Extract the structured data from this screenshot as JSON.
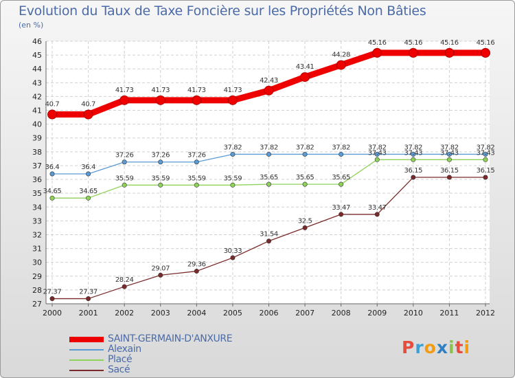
{
  "title": "Evolution du Taux de Taxe Foncière sur les Propriétés Non Bâties",
  "unit_label": "(en %)",
  "logo": {
    "letters": [
      "P",
      "r",
      "o",
      "x",
      "i",
      "t",
      "i"
    ],
    "colors": [
      "#e84c3d",
      "#3aa0d6",
      "#f39c12",
      "#2f7fc1",
      "#8bc34a",
      "#e84c3d",
      "#f39c12"
    ]
  },
  "chart_data": {
    "type": "line",
    "title": "Evolution du Taux de Taxe Foncière sur les Propriétés Non Bâties",
    "ylabel": "(en %)",
    "xlabel": "",
    "ylim": [
      27,
      46
    ],
    "yticks": [
      27,
      28,
      29,
      30,
      31,
      32,
      33,
      34,
      35,
      36,
      37,
      38,
      39,
      40,
      41,
      42,
      43,
      44,
      45,
      46
    ],
    "x": [
      "2000",
      "2001",
      "2002",
      "2003",
      "2004",
      "2005",
      "2006",
      "2007",
      "2008",
      "2009",
      "2010",
      "2011",
      "2012"
    ],
    "grid": true,
    "legend_position": "bottom-left",
    "series": [
      {
        "name": "SAINT-GERMAIN-D'ANXURE",
        "color": "#ee0000",
        "width": 9,
        "values": [
          40.7,
          40.7,
          41.73,
          41.73,
          41.73,
          41.73,
          42.43,
          43.41,
          44.28,
          45.16,
          45.16,
          45.16,
          45.16
        ],
        "labels": [
          "40.7",
          "40.7",
          "41.73",
          "41.73",
          "41.73",
          "41.73",
          "42.43",
          "43.41",
          "44.28",
          "45.16",
          "45.16",
          "45.16",
          "45.16"
        ]
      },
      {
        "name": "Alexain",
        "color": "#5b9bd5",
        "width": 1.3,
        "values": [
          36.4,
          36.4,
          37.26,
          37.26,
          37.26,
          37.82,
          37.82,
          37.82,
          37.82,
          37.82,
          37.82,
          37.82,
          37.82
        ],
        "labels": [
          "36.4",
          "36.4",
          "37.26",
          "37.26",
          "37.26",
          "37.82",
          "37.82",
          "37.82",
          "37.82",
          "37.82",
          "37.82",
          "37.82",
          "37.82"
        ]
      },
      {
        "name": "Placé",
        "color": "#8fd25a",
        "width": 1.3,
        "values": [
          34.65,
          34.65,
          35.59,
          35.59,
          35.59,
          35.59,
          35.65,
          35.65,
          35.65,
          37.43,
          37.43,
          37.43,
          37.43
        ],
        "labels": [
          "34.65",
          "34.65",
          "35.59",
          "35.59",
          "35.59",
          "35.59",
          "35.65",
          "35.65",
          "35.65",
          "37.43",
          "37.43",
          "37.43",
          "37.43"
        ]
      },
      {
        "name": "Sacé",
        "color": "#7a2a2a",
        "width": 1.3,
        "values": [
          27.37,
          27.37,
          28.24,
          29.07,
          29.36,
          30.33,
          31.54,
          32.5,
          33.47,
          33.47,
          36.15,
          36.15,
          36.15
        ],
        "labels": [
          "27.37",
          "27.37",
          "28.24",
          "29.07",
          "29.36",
          "30.33",
          "31.54",
          "32.5",
          "33.47",
          "33.47",
          "36.15",
          "36.15",
          "36.15"
        ]
      }
    ]
  }
}
